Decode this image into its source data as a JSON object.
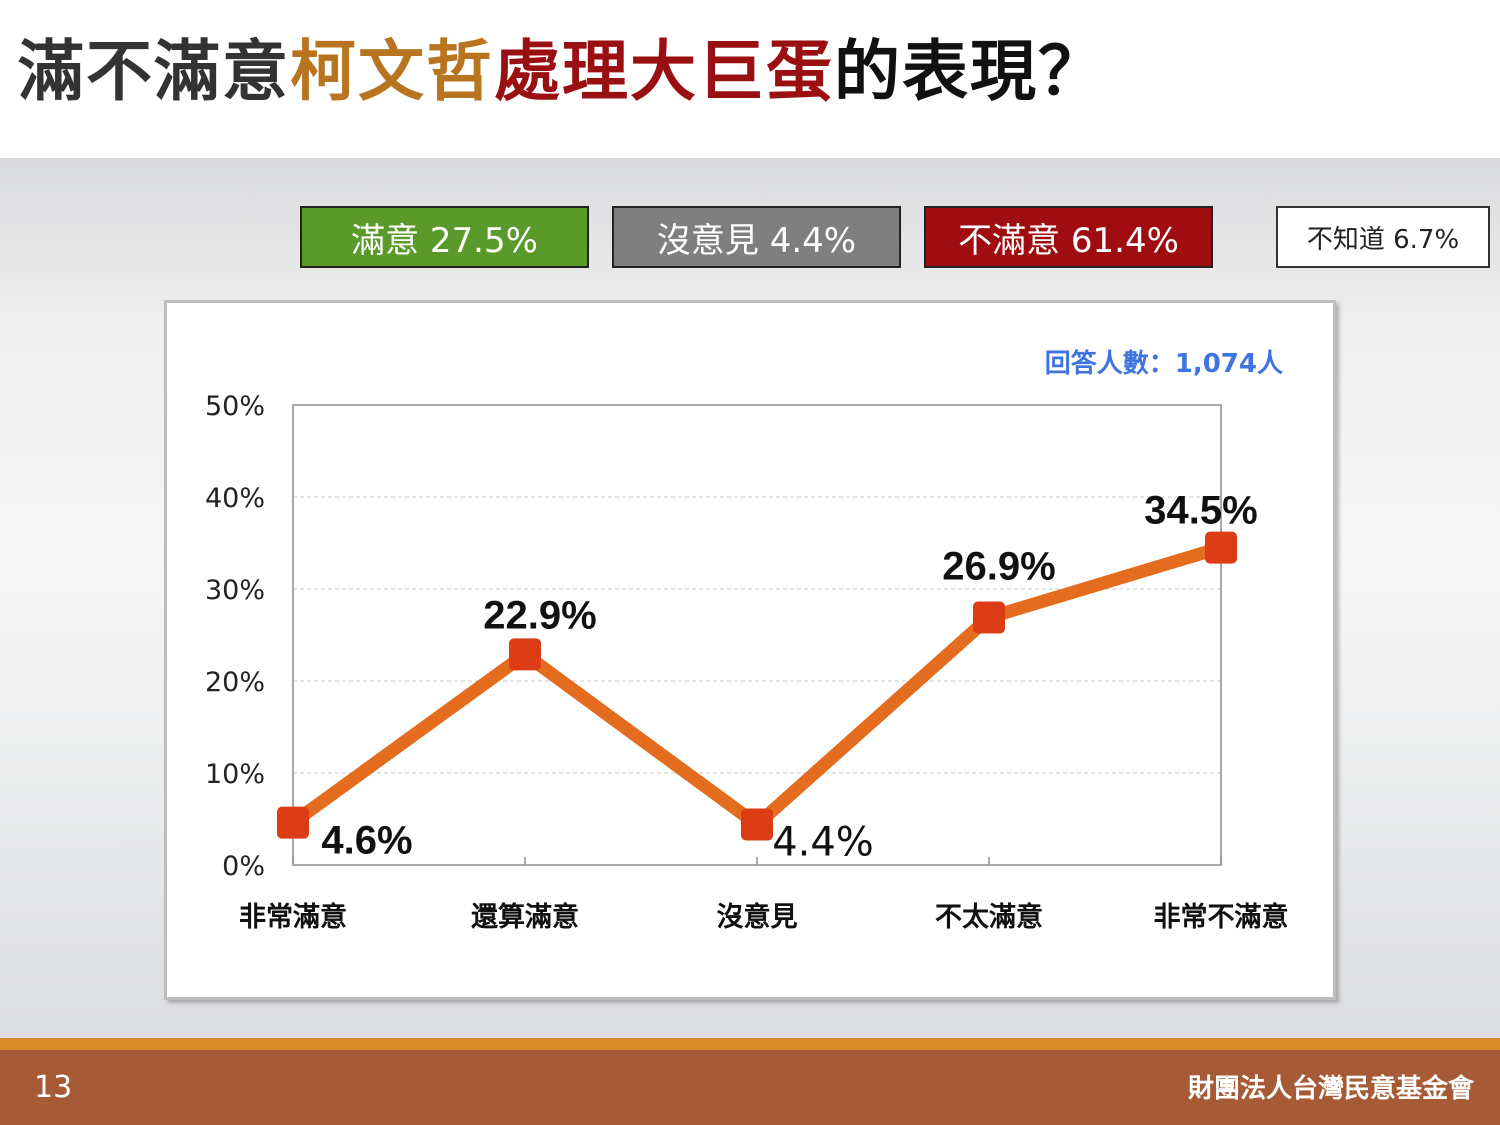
{
  "title": {
    "segments": [
      {
        "text": "滿不滿意",
        "color": "#333333"
      },
      {
        "text": "柯文哲",
        "color": "#b8741f"
      },
      {
        "text": "處理大巨蛋",
        "color": "#9a0f12"
      },
      {
        "text": "的表現？",
        "color": "#111111"
      }
    ]
  },
  "legend": {
    "satisfied": "滿意 27.5%",
    "no_opinion": "沒意見 4.4%",
    "dissatisfied": "不滿意 61.4%",
    "dont_know": "不知道 6.7%"
  },
  "respondents": "回答人數：1,074人",
  "chart_data": {
    "type": "line",
    "categories": [
      "非常滿意",
      "還算滿意",
      "沒意見",
      "不太滿意",
      "非常不滿意"
    ],
    "values": [
      4.6,
      22.9,
      4.4,
      26.9,
      34.5
    ],
    "data_labels": [
      "4.6%",
      "22.9%",
      "4.4%",
      "26.9%",
      "34.5%"
    ],
    "y_ticks": [
      "0%",
      "10%",
      "20%",
      "30%",
      "40%",
      "50%"
    ],
    "ylim": [
      0,
      50
    ],
    "grid": true,
    "series_color": "#e46c1e",
    "marker_color": "#dc3d14"
  },
  "footer": {
    "page_number": "13",
    "organization": "財團法人台灣民意基金會"
  }
}
